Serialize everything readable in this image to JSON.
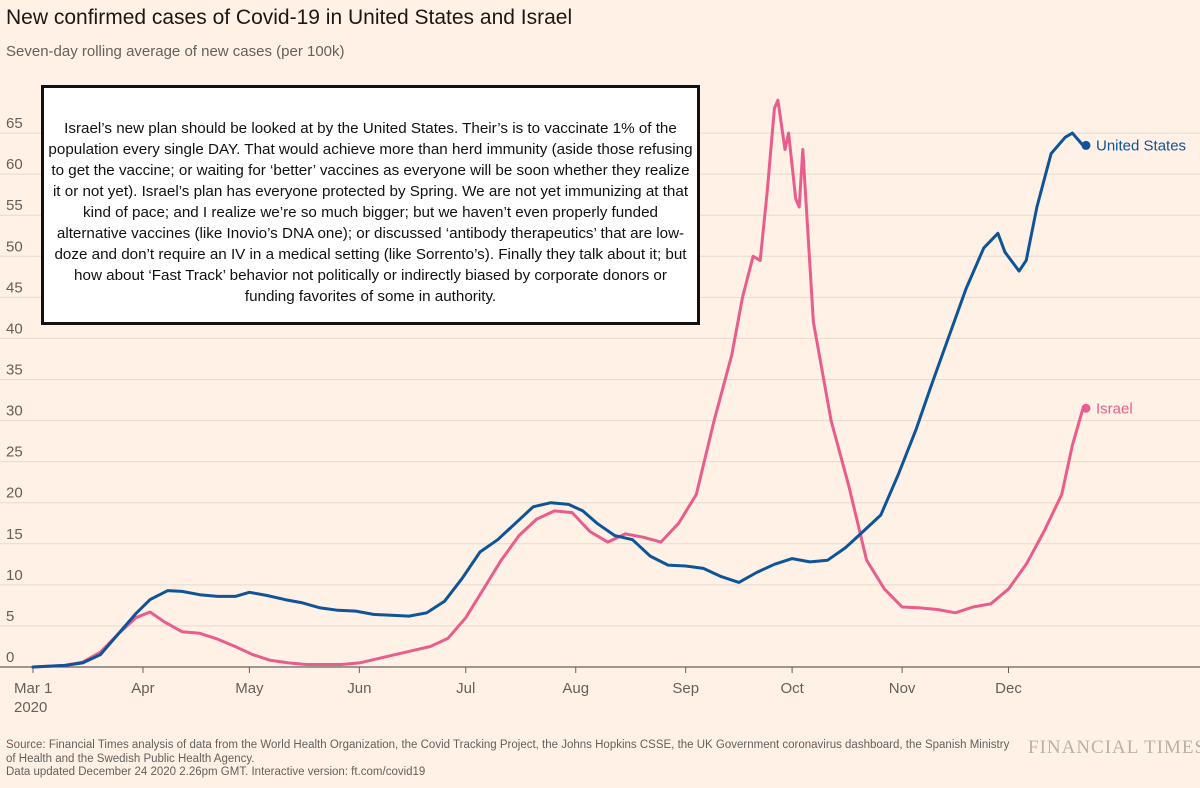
{
  "header": {
    "title": "New confirmed cases of Covid-19 in United States and Israel",
    "subtitle": "Seven-day rolling average of new cases (per 100k)"
  },
  "annotation": {
    "text": "Israel’s new plan should be looked at by the United States. Their’s is to vaccinate 1% of the population every single DAY. That would achieve more than herd immunity (aside those refusing to get the vaccine; or waiting for ‘better’ vaccines as everyone will be soon whether they realize it or not yet). Israel’s plan has everyone protected by Spring. We are not yet immunizing at that kind of pace; and I realize we’re so much bigger; but we haven’t even properly funded alternative vaccines (like Inovio’s DNA one); or discussed ‘antibody therapeutics’ that are low-doze and don’t require an IV in a medical setting (like Sorrento’s). Finally they talk about it; but how about ‘Fast Track’ behavior not politically or indirectly biased by corporate donors or funding favorites of some in authority."
  },
  "footer": {
    "source_line1": "Source: Financial Times analysis of data from the World Health Organization, the Covid Tracking Project, the Johns Hopkins CSSE, the UK Government coronavirus dashboard, the Spanish Ministry of Health and the Swedish Public Health Agency.",
    "source_line2": "Data updated December 24 2020 2.26pm GMT. Interactive version: ft.com/covid19",
    "brand": "FINANCIAL TIMES"
  },
  "chart_data": {
    "type": "line",
    "title": "New confirmed cases of Covid-19 in United States and Israel",
    "subtitle": "Seven-day rolling average of new cases (per 100k)",
    "x_axis": {
      "ticks": [
        {
          "label": "Mar 1",
          "sublabel": "2020",
          "date": "2020-03-01"
        },
        {
          "label": "Apr",
          "date": "2020-04-01"
        },
        {
          "label": "May",
          "date": "2020-05-01"
        },
        {
          "label": "Jun",
          "date": "2020-06-01"
        },
        {
          "label": "Jul",
          "date": "2020-07-01"
        },
        {
          "label": "Aug",
          "date": "2020-08-01"
        },
        {
          "label": "Sep",
          "date": "2020-09-01"
        },
        {
          "label": "Oct",
          "date": "2020-10-01"
        },
        {
          "label": "Nov",
          "date": "2020-11-01"
        },
        {
          "label": "Dec",
          "date": "2020-12-01"
        }
      ],
      "range": [
        "2020-03-01",
        "2020-12-22"
      ]
    },
    "y_axis": {
      "range": [
        0,
        70
      ],
      "ticks": [
        0,
        5,
        10,
        15,
        20,
        25,
        30,
        35,
        40,
        45,
        50,
        55,
        60,
        65
      ]
    },
    "grid": "horizontal",
    "legend": "end-of-line labels",
    "series": [
      {
        "name": "United States",
        "color": "#0f5499",
        "points": [
          [
            "2020-03-01",
            0
          ],
          [
            "2020-03-10",
            0.2
          ],
          [
            "2020-03-15",
            0.5
          ],
          [
            "2020-03-20",
            1.5
          ],
          [
            "2020-03-25",
            4
          ],
          [
            "2020-03-30",
            6.5
          ],
          [
            "2020-04-03",
            8.2
          ],
          [
            "2020-04-08",
            9.3
          ],
          [
            "2020-04-12",
            9.2
          ],
          [
            "2020-04-17",
            8.8
          ],
          [
            "2020-04-22",
            8.6
          ],
          [
            "2020-04-27",
            8.6
          ],
          [
            "2020-05-01",
            9.1
          ],
          [
            "2020-05-06",
            8.7
          ],
          [
            "2020-05-11",
            8.2
          ],
          [
            "2020-05-16",
            7.8
          ],
          [
            "2020-05-21",
            7.2
          ],
          [
            "2020-05-26",
            6.9
          ],
          [
            "2020-05-31",
            6.8
          ],
          [
            "2020-06-05",
            6.4
          ],
          [
            "2020-06-10",
            6.3
          ],
          [
            "2020-06-15",
            6.2
          ],
          [
            "2020-06-20",
            6.6
          ],
          [
            "2020-06-25",
            8
          ],
          [
            "2020-06-30",
            10.8
          ],
          [
            "2020-07-05",
            14
          ],
          [
            "2020-07-10",
            15.5
          ],
          [
            "2020-07-15",
            17.5
          ],
          [
            "2020-07-20",
            19.5
          ],
          [
            "2020-07-25",
            20
          ],
          [
            "2020-07-30",
            19.8
          ],
          [
            "2020-08-03",
            19
          ],
          [
            "2020-08-07",
            17.5
          ],
          [
            "2020-08-12",
            16
          ],
          [
            "2020-08-17",
            15.5
          ],
          [
            "2020-08-22",
            13.5
          ],
          [
            "2020-08-27",
            12.4
          ],
          [
            "2020-09-01",
            12.3
          ],
          [
            "2020-09-06",
            12
          ],
          [
            "2020-09-11",
            11
          ],
          [
            "2020-09-16",
            10.3
          ],
          [
            "2020-09-21",
            11.5
          ],
          [
            "2020-09-26",
            12.5
          ],
          [
            "2020-10-01",
            13.2
          ],
          [
            "2020-10-06",
            12.8
          ],
          [
            "2020-10-11",
            13
          ],
          [
            "2020-10-16",
            14.5
          ],
          [
            "2020-10-21",
            16.5
          ],
          [
            "2020-10-26",
            18.5
          ],
          [
            "2020-10-31",
            23.5
          ],
          [
            "2020-11-05",
            29
          ],
          [
            "2020-11-09",
            34
          ],
          [
            "2020-11-14",
            40
          ],
          [
            "2020-11-19",
            46
          ],
          [
            "2020-11-24",
            51
          ],
          [
            "2020-11-28",
            52.8
          ],
          [
            "2020-11-30",
            50.5
          ],
          [
            "2020-12-04",
            48.2
          ],
          [
            "2020-12-06",
            49.5
          ],
          [
            "2020-12-09",
            56
          ],
          [
            "2020-12-13",
            62.5
          ],
          [
            "2020-12-17",
            64.5
          ],
          [
            "2020-12-19",
            65
          ],
          [
            "2020-12-22",
            63.5
          ]
        ]
      },
      {
        "name": "Israel",
        "color": "#e95d8c",
        "points": [
          [
            "2020-03-01",
            0
          ],
          [
            "2020-03-10",
            0.2
          ],
          [
            "2020-03-15",
            0.6
          ],
          [
            "2020-03-20",
            1.8
          ],
          [
            "2020-03-25",
            4
          ],
          [
            "2020-03-30",
            6
          ],
          [
            "2020-04-03",
            6.7
          ],
          [
            "2020-04-07",
            5.5
          ],
          [
            "2020-04-12",
            4.3
          ],
          [
            "2020-04-17",
            4.1
          ],
          [
            "2020-04-22",
            3.4
          ],
          [
            "2020-04-27",
            2.5
          ],
          [
            "2020-05-02",
            1.5
          ],
          [
            "2020-05-07",
            0.8
          ],
          [
            "2020-05-12",
            0.5
          ],
          [
            "2020-05-17",
            0.3
          ],
          [
            "2020-05-22",
            0.3
          ],
          [
            "2020-05-27",
            0.3
          ],
          [
            "2020-06-01",
            0.5
          ],
          [
            "2020-06-06",
            1
          ],
          [
            "2020-06-11",
            1.5
          ],
          [
            "2020-06-16",
            2
          ],
          [
            "2020-06-21",
            2.5
          ],
          [
            "2020-06-26",
            3.5
          ],
          [
            "2020-07-01",
            6
          ],
          [
            "2020-07-06",
            9.5
          ],
          [
            "2020-07-11",
            13
          ],
          [
            "2020-07-16",
            16
          ],
          [
            "2020-07-21",
            18
          ],
          [
            "2020-07-26",
            19
          ],
          [
            "2020-07-31",
            18.8
          ],
          [
            "2020-08-05",
            16.5
          ],
          [
            "2020-08-10",
            15.2
          ],
          [
            "2020-08-15",
            16.2
          ],
          [
            "2020-08-20",
            15.8
          ],
          [
            "2020-08-25",
            15.2
          ],
          [
            "2020-08-30",
            17.5
          ],
          [
            "2020-09-04",
            21
          ],
          [
            "2020-09-09",
            30
          ],
          [
            "2020-09-14",
            38
          ],
          [
            "2020-09-17",
            45
          ],
          [
            "2020-09-20",
            50
          ],
          [
            "2020-09-22",
            49.5
          ],
          [
            "2020-09-24",
            58
          ],
          [
            "2020-09-26",
            68
          ],
          [
            "2020-09-27",
            69
          ],
          [
            "2020-09-29",
            63
          ],
          [
            "2020-09-30",
            65
          ],
          [
            "2020-10-02",
            57
          ],
          [
            "2020-10-03",
            56
          ],
          [
            "2020-10-04",
            63
          ],
          [
            "2020-10-07",
            42
          ],
          [
            "2020-10-12",
            30
          ],
          [
            "2020-10-17",
            22
          ],
          [
            "2020-10-22",
            13
          ],
          [
            "2020-10-27",
            9.5
          ],
          [
            "2020-11-01",
            7.3
          ],
          [
            "2020-11-06",
            7.2
          ],
          [
            "2020-11-11",
            7
          ],
          [
            "2020-11-16",
            6.6
          ],
          [
            "2020-11-21",
            7.3
          ],
          [
            "2020-11-26",
            7.7
          ],
          [
            "2020-12-01",
            9.5
          ],
          [
            "2020-12-06",
            12.5
          ],
          [
            "2020-12-11",
            16.5
          ],
          [
            "2020-12-16",
            21
          ],
          [
            "2020-12-19",
            27
          ],
          [
            "2020-12-22",
            31.5
          ]
        ]
      }
    ]
  }
}
